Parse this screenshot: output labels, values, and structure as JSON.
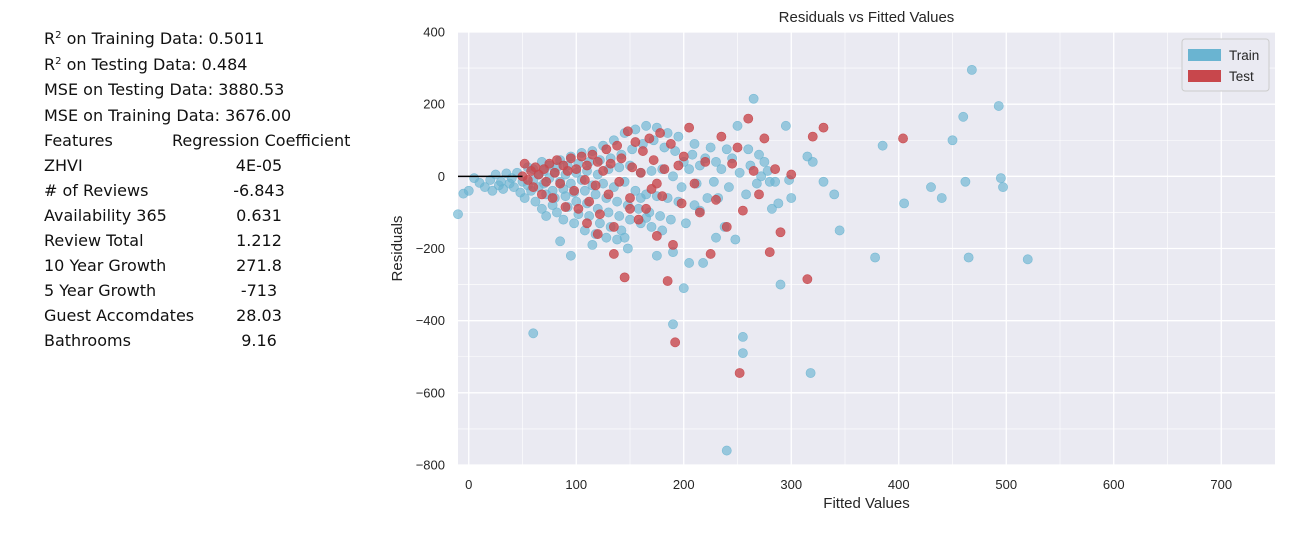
{
  "stats": {
    "r2_train": {
      "prefix": "R",
      "sup": "2",
      "text": " on Training Data: 0.5011"
    },
    "r2_test": {
      "prefix": "R",
      "sup": "2",
      "text": " on Testing Data: 0.484"
    },
    "mse_test": "MSE  on Testing Data: 3880.53",
    "mse_train": "MSE  on Training Data: 3676.00"
  },
  "coefficients": {
    "header_feature": "Features",
    "header_value": "Regression Coefficient",
    "rows": [
      {
        "feature": "ZHVI",
        "value": "4E-05"
      },
      {
        "feature": "# of Reviews",
        "value": "-6.843"
      },
      {
        "feature": "Availability 365",
        "value": "0.631"
      },
      {
        "feature": "Review Total",
        "value": "1.212"
      },
      {
        "feature": "10 Year Growth",
        "value": "271.8"
      },
      {
        "feature": "5 Year Growth",
        "value": "-713"
      },
      {
        "feature": "Guest Accomdates",
        "value": "28.03"
      },
      {
        "feature": "Bathrooms",
        "value": "9.16"
      }
    ]
  },
  "chart_data": {
    "type": "scatter",
    "title": "Residuals vs Fitted Values",
    "xlabel": "Fitted Values",
    "ylabel": "Residuals",
    "xlim": [
      -10,
      750
    ],
    "ylim": [
      -800,
      400
    ],
    "xticks": [
      0,
      100,
      200,
      300,
      400,
      500,
      600,
      700
    ],
    "yticks": [
      400,
      200,
      0,
      -200,
      -400,
      -600,
      -800
    ],
    "grid": true,
    "legend_position": "top-right",
    "reference_line": {
      "y": 0,
      "x_from": -10,
      "x_to": 50
    },
    "series": [
      {
        "name": "Train",
        "color": "#6ab4d1",
        "points": [
          [
            -10,
            -105
          ],
          [
            -5,
            -48
          ],
          [
            0,
            -40
          ],
          [
            5,
            -5
          ],
          [
            10,
            -18
          ],
          [
            15,
            -30
          ],
          [
            20,
            -10
          ],
          [
            22,
            -40
          ],
          [
            25,
            5
          ],
          [
            28,
            -25
          ],
          [
            30,
            -15
          ],
          [
            32,
            -35
          ],
          [
            35,
            8
          ],
          [
            38,
            -20
          ],
          [
            40,
            -5
          ],
          [
            42,
            -30
          ],
          [
            45,
            10
          ],
          [
            48,
            -45
          ],
          [
            50,
            -15
          ],
          [
            52,
            -60
          ],
          [
            55,
            -25
          ],
          [
            55,
            25
          ],
          [
            58,
            -40
          ],
          [
            60,
            -10
          ],
          [
            60,
            20
          ],
          [
            62,
            -70
          ],
          [
            65,
            -30
          ],
          [
            65,
            5
          ],
          [
            68,
            -90
          ],
          [
            68,
            40
          ],
          [
            70,
            -20
          ],
          [
            70,
            15
          ],
          [
            72,
            -50
          ],
          [
            72,
            -110
          ],
          [
            75,
            -5
          ],
          [
            75,
            30
          ],
          [
            78,
            -40
          ],
          [
            78,
            -80
          ],
          [
            80,
            10
          ],
          [
            80,
            -60
          ],
          [
            82,
            25
          ],
          [
            82,
            -100
          ],
          [
            85,
            -15
          ],
          [
            85,
            45
          ],
          [
            88,
            -35
          ],
          [
            88,
            -120
          ],
          [
            90,
            5
          ],
          [
            90,
            -55
          ],
          [
            92,
            30
          ],
          [
            92,
            -85
          ],
          [
            95,
            -20
          ],
          [
            95,
            55
          ],
          [
            98,
            -45
          ],
          [
            98,
            -130
          ],
          [
            100,
            10
          ],
          [
            100,
            -70
          ],
          [
            102,
            35
          ],
          [
            102,
            -105
          ],
          [
            105,
            -10
          ],
          [
            105,
            65
          ],
          [
            108,
            -40
          ],
          [
            108,
            -150
          ],
          [
            110,
            15
          ],
          [
            110,
            -75
          ],
          [
            112,
            40
          ],
          [
            112,
            -110
          ],
          [
            115,
            -25
          ],
          [
            115,
            70
          ],
          [
            118,
            -50
          ],
          [
            118,
            -160
          ],
          [
            120,
            5
          ],
          [
            120,
            -90
          ],
          [
            122,
            45
          ],
          [
            122,
            -130
          ],
          [
            125,
            -20
          ],
          [
            125,
            85
          ],
          [
            128,
            -60
          ],
          [
            128,
            -170
          ],
          [
            130,
            20
          ],
          [
            130,
            -100
          ],
          [
            132,
            50
          ],
          [
            132,
            -140
          ],
          [
            135,
            -30
          ],
          [
            135,
            100
          ],
          [
            138,
            -70
          ],
          [
            138,
            -175
          ],
          [
            140,
            25
          ],
          [
            140,
            -110
          ],
          [
            142,
            60
          ],
          [
            142,
            -150
          ],
          [
            145,
            -15
          ],
          [
            145,
            120
          ],
          [
            148,
            -80
          ],
          [
            148,
            -200
          ],
          [
            150,
            30
          ],
          [
            150,
            -120
          ],
          [
            152,
            75
          ],
          [
            155,
            -40
          ],
          [
            155,
            130
          ],
          [
            158,
            -90
          ],
          [
            160,
            10
          ],
          [
            160,
            -130
          ],
          [
            162,
            90
          ],
          [
            165,
            -50
          ],
          [
            165,
            140
          ],
          [
            168,
            -100
          ],
          [
            170,
            15
          ],
          [
            170,
            -140
          ],
          [
            172,
            100
          ],
          [
            175,
            -55
          ],
          [
            175,
            135
          ],
          [
            178,
            -110
          ],
          [
            180,
            20
          ],
          [
            180,
            -150
          ],
          [
            182,
            80
          ],
          [
            185,
            -60
          ],
          [
            185,
            120
          ],
          [
            188,
            -120
          ],
          [
            190,
            0
          ],
          [
            190,
            -210
          ],
          [
            192,
            70
          ],
          [
            195,
            -70
          ],
          [
            195,
            110
          ],
          [
            198,
            -30
          ],
          [
            200,
            40
          ],
          [
            200,
            -310
          ],
          [
            202,
            -130
          ],
          [
            205,
            20
          ],
          [
            205,
            -240
          ],
          [
            208,
            60
          ],
          [
            210,
            -80
          ],
          [
            210,
            90
          ],
          [
            212,
            -20
          ],
          [
            215,
            30
          ],
          [
            215,
            -95
          ],
          [
            218,
            -240
          ],
          [
            220,
            50
          ],
          [
            222,
            -60
          ],
          [
            225,
            80
          ],
          [
            228,
            -15
          ],
          [
            230,
            -170
          ],
          [
            230,
            40
          ],
          [
            232,
            -60
          ],
          [
            235,
            20
          ],
          [
            238,
            -140
          ],
          [
            240,
            75
          ],
          [
            240,
            -760
          ],
          [
            242,
            -30
          ],
          [
            245,
            50
          ],
          [
            248,
            -175
          ],
          [
            250,
            140
          ],
          [
            252,
            10
          ],
          [
            255,
            -445
          ],
          [
            255,
            -490
          ],
          [
            258,
            -50
          ],
          [
            260,
            75
          ],
          [
            262,
            30
          ],
          [
            265,
            215
          ],
          [
            268,
            -20
          ],
          [
            270,
            60
          ],
          [
            272,
            0
          ],
          [
            275,
            40
          ],
          [
            278,
            15
          ],
          [
            280,
            -15
          ],
          [
            282,
            -90
          ],
          [
            285,
            -15
          ],
          [
            288,
            -75
          ],
          [
            290,
            -300
          ],
          [
            295,
            140
          ],
          [
            298,
            -10
          ],
          [
            300,
            -60
          ],
          [
            315,
            55
          ],
          [
            318,
            -545
          ],
          [
            320,
            40
          ],
          [
            330,
            -15
          ],
          [
            340,
            -50
          ],
          [
            345,
            -150
          ],
          [
            378,
            -225
          ],
          [
            385,
            85
          ],
          [
            405,
            -75
          ],
          [
            430,
            -30
          ],
          [
            440,
            -60
          ],
          [
            450,
            100
          ],
          [
            460,
            165
          ],
          [
            462,
            -15
          ],
          [
            465,
            -225
          ],
          [
            468,
            295
          ],
          [
            493,
            195
          ],
          [
            495,
            -5
          ],
          [
            497,
            -30
          ],
          [
            520,
            -230
          ],
          [
            85,
            -180
          ],
          [
            95,
            -220
          ],
          [
            115,
            -190
          ],
          [
            145,
            -170
          ],
          [
            175,
            -220
          ],
          [
            60,
            -435
          ],
          [
            190,
            -410
          ],
          [
            160,
            -60
          ],
          [
            165,
            -115
          ]
        ]
      },
      {
        "name": "Test",
        "color": "#c8474c",
        "points": [
          [
            50,
            0
          ],
          [
            52,
            35
          ],
          [
            55,
            -10
          ],
          [
            58,
            15
          ],
          [
            60,
            -30
          ],
          [
            62,
            25
          ],
          [
            65,
            5
          ],
          [
            68,
            -50
          ],
          [
            70,
            20
          ],
          [
            72,
            -15
          ],
          [
            75,
            35
          ],
          [
            78,
            -60
          ],
          [
            80,
            10
          ],
          [
            82,
            45
          ],
          [
            85,
            -20
          ],
          [
            88,
            30
          ],
          [
            90,
            -85
          ],
          [
            92,
            15
          ],
          [
            95,
            50
          ],
          [
            98,
            -40
          ],
          [
            100,
            20
          ],
          [
            102,
            -90
          ],
          [
            105,
            55
          ],
          [
            108,
            -10
          ],
          [
            110,
            30
          ],
          [
            112,
            -70
          ],
          [
            115,
            60
          ],
          [
            118,
            -25
          ],
          [
            120,
            40
          ],
          [
            122,
            -105
          ],
          [
            125,
            15
          ],
          [
            128,
            75
          ],
          [
            130,
            -50
          ],
          [
            132,
            35
          ],
          [
            135,
            -140
          ],
          [
            138,
            85
          ],
          [
            140,
            -15
          ],
          [
            142,
            50
          ],
          [
            145,
            -280
          ],
          [
            148,
            125
          ],
          [
            150,
            -60
          ],
          [
            152,
            25
          ],
          [
            155,
            95
          ],
          [
            158,
            -120
          ],
          [
            160,
            10
          ],
          [
            162,
            70
          ],
          [
            165,
            -90
          ],
          [
            168,
            105
          ],
          [
            170,
            -35
          ],
          [
            172,
            45
          ],
          [
            175,
            -165
          ],
          [
            178,
            120
          ],
          [
            180,
            -55
          ],
          [
            182,
            20
          ],
          [
            185,
            -290
          ],
          [
            188,
            90
          ],
          [
            190,
            -190
          ],
          [
            192,
            -460
          ],
          [
            195,
            30
          ],
          [
            198,
            -75
          ],
          [
            200,
            55
          ],
          [
            205,
            135
          ],
          [
            210,
            -20
          ],
          [
            215,
            -100
          ],
          [
            220,
            40
          ],
          [
            225,
            -215
          ],
          [
            230,
            -65
          ],
          [
            235,
            110
          ],
          [
            240,
            -140
          ],
          [
            245,
            35
          ],
          [
            250,
            80
          ],
          [
            252,
            -545
          ],
          [
            255,
            -95
          ],
          [
            260,
            160
          ],
          [
            265,
            15
          ],
          [
            270,
            -50
          ],
          [
            275,
            105
          ],
          [
            280,
            -210
          ],
          [
            285,
            20
          ],
          [
            290,
            -155
          ],
          [
            300,
            5
          ],
          [
            315,
            -285
          ],
          [
            320,
            110
          ],
          [
            330,
            135
          ],
          [
            404,
            105
          ],
          [
            120,
            -160
          ],
          [
            110,
            -130
          ],
          [
            135,
            -215
          ],
          [
            150,
            -90
          ],
          [
            175,
            -20
          ]
        ]
      }
    ]
  }
}
